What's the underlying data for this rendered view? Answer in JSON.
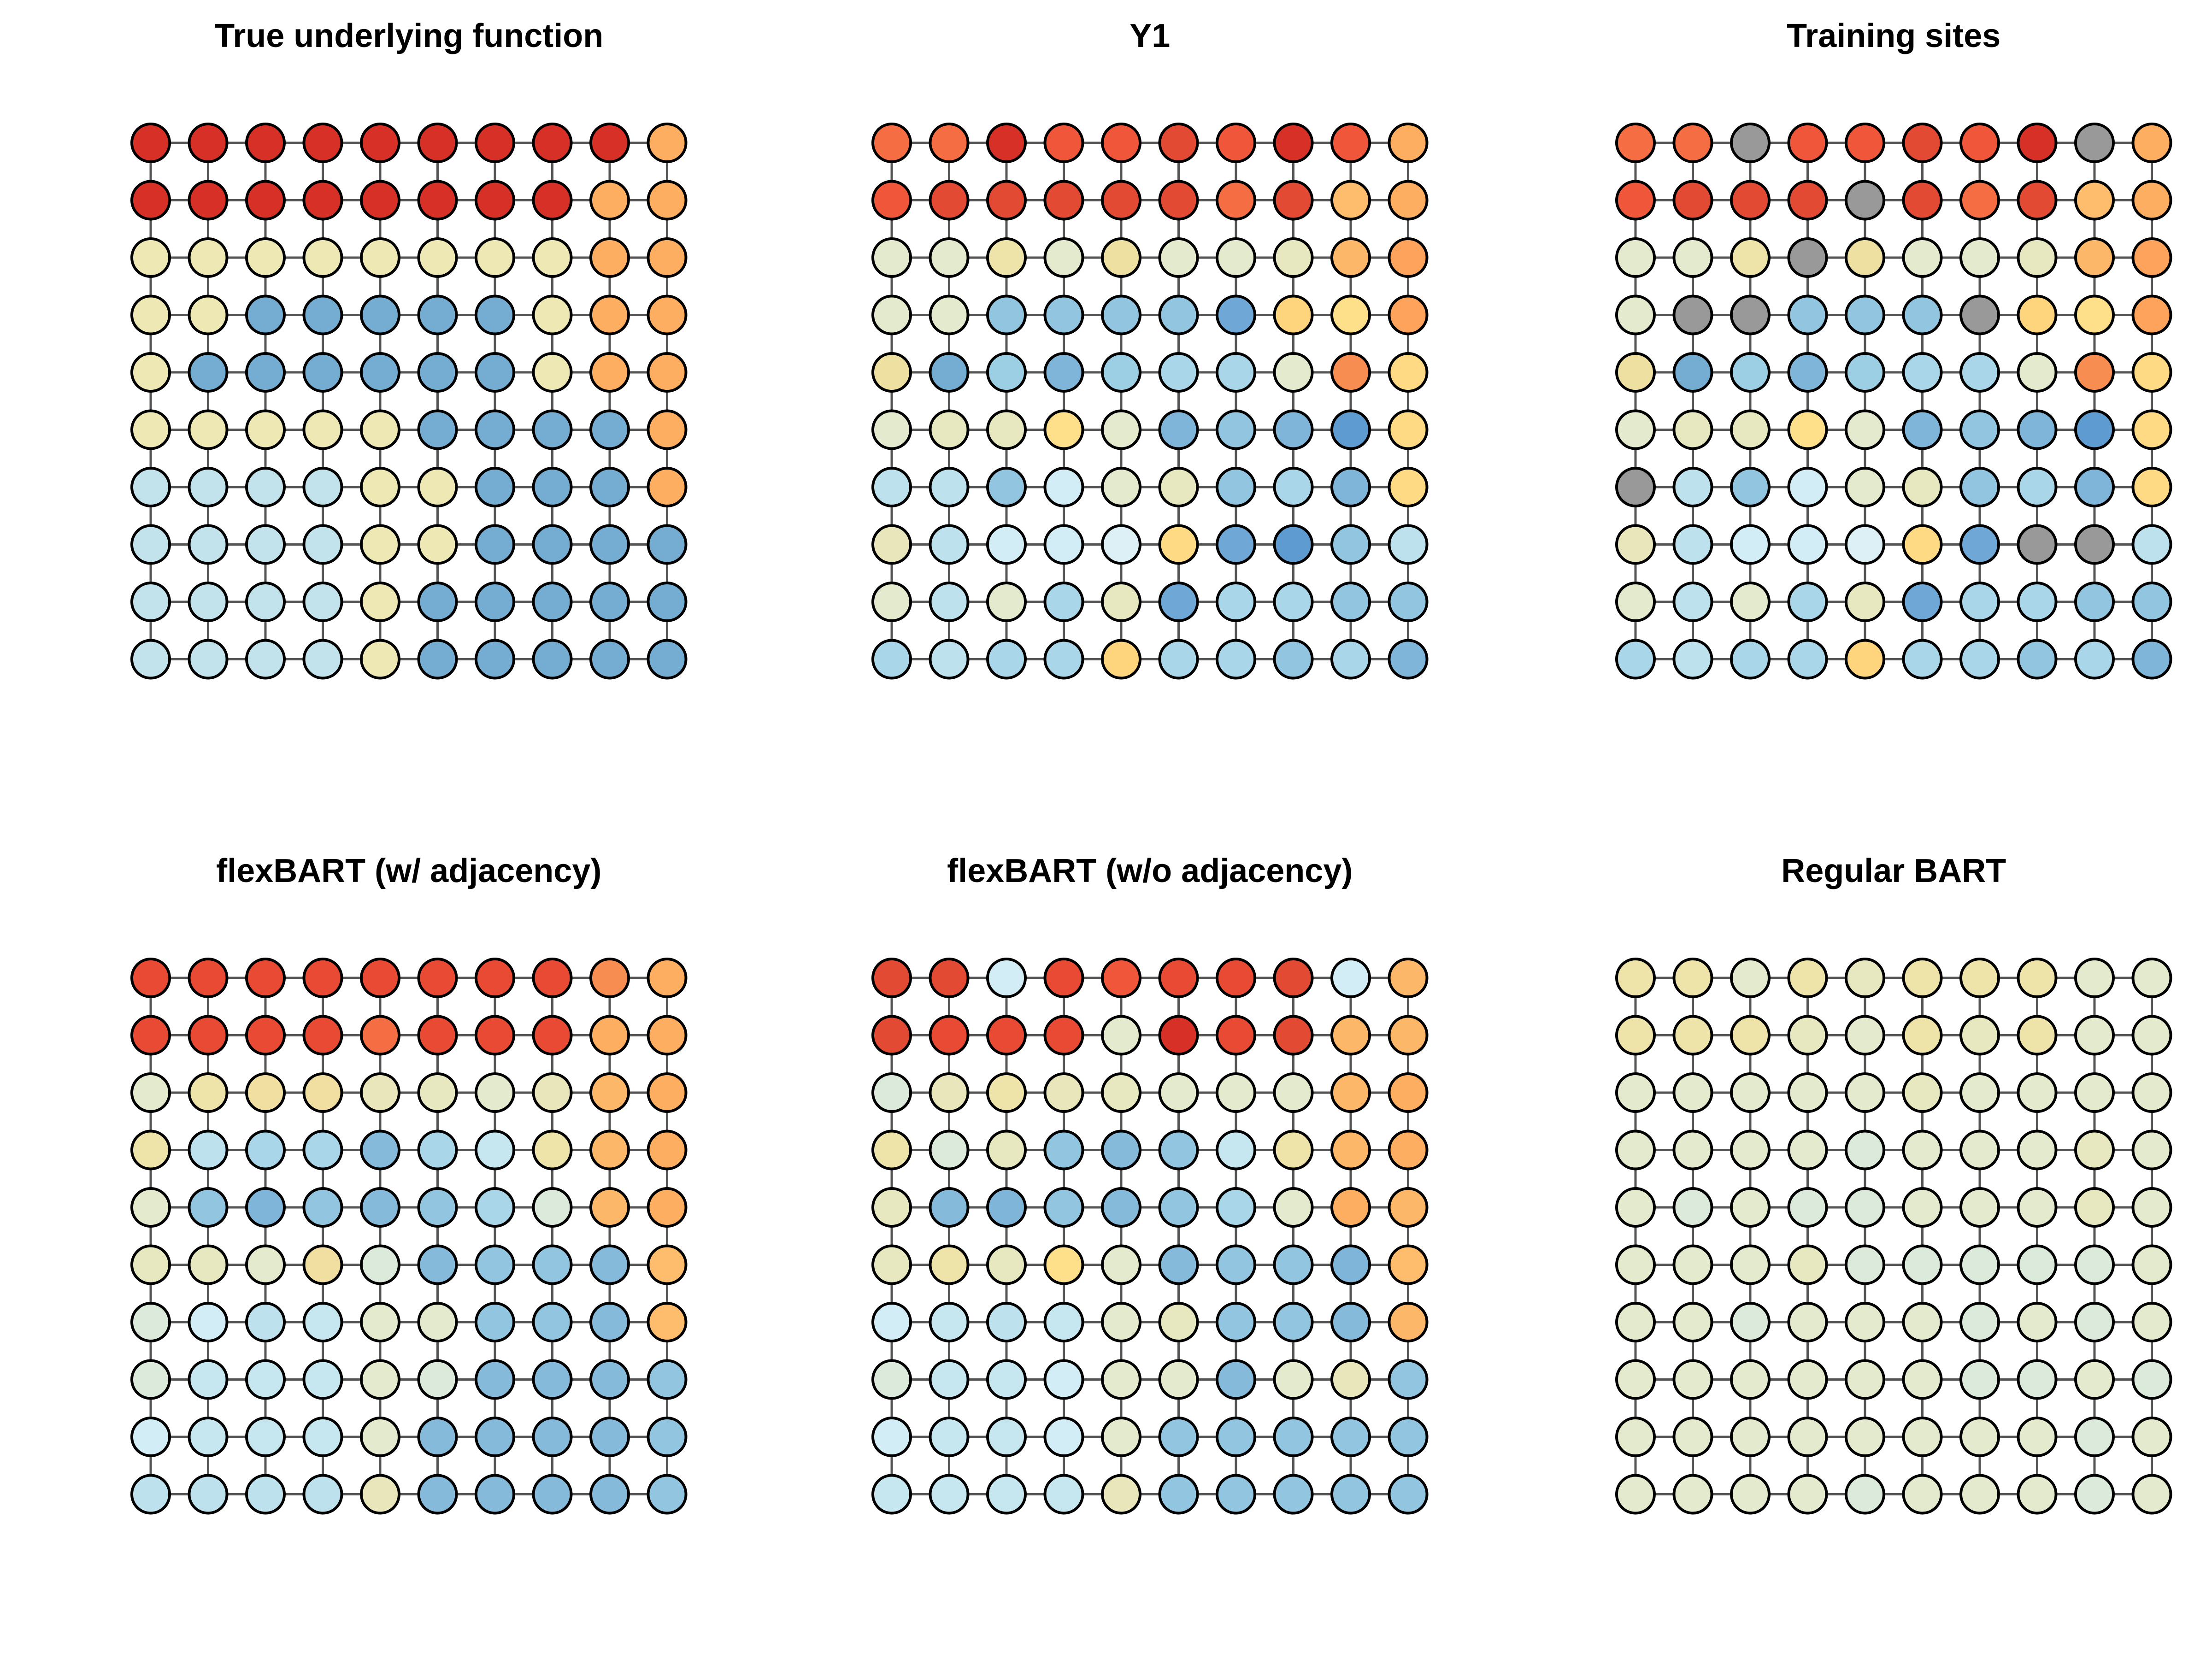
{
  "chart_data": [
    {
      "type": "heatmap",
      "title": "True underlying function",
      "grid": [
        [
          "#D73027",
          "#D73027",
          "#D73027",
          "#D73027",
          "#D73027",
          "#D73027",
          "#D73027",
          "#D73027",
          "#D73027",
          "#FDAE61"
        ],
        [
          "#D73027",
          "#D73027",
          "#D73027",
          "#D73027",
          "#D73027",
          "#D73027",
          "#D73027",
          "#D73027",
          "#FDAE61",
          "#FDAE61"
        ],
        [
          "#EEE8B5",
          "#EEE8B5",
          "#EEE8B5",
          "#EEE8B5",
          "#EEE8B5",
          "#EEE8B5",
          "#EEE8B5",
          "#EEE8B5",
          "#FDAE61",
          "#FDAE61"
        ],
        [
          "#EEE8B5",
          "#EEE8B5",
          "#74ADD1",
          "#74ADD1",
          "#74ADD1",
          "#74ADD1",
          "#74ADD1",
          "#EEE8B5",
          "#FDAE61",
          "#FDAE61"
        ],
        [
          "#EEE8B5",
          "#74ADD1",
          "#74ADD1",
          "#74ADD1",
          "#74ADD1",
          "#74ADD1",
          "#74ADD1",
          "#EEE8B5",
          "#FDAE61",
          "#FDAE61"
        ],
        [
          "#EEE8B5",
          "#EEE8B5",
          "#EEE8B5",
          "#EEE8B5",
          "#EEE8B5",
          "#74ADD1",
          "#74ADD1",
          "#74ADD1",
          "#74ADD1",
          "#FDAE61"
        ],
        [
          "#C3E3EC",
          "#C3E3EC",
          "#C3E3EC",
          "#C3E3EC",
          "#EEE8B5",
          "#EEE8B5",
          "#74ADD1",
          "#74ADD1",
          "#74ADD1",
          "#FDAE61"
        ],
        [
          "#C3E3EC",
          "#C3E3EC",
          "#C3E3EC",
          "#C3E3EC",
          "#EEE8B5",
          "#EEE8B5",
          "#74ADD1",
          "#74ADD1",
          "#74ADD1",
          "#74ADD1"
        ],
        [
          "#C3E3EC",
          "#C3E3EC",
          "#C3E3EC",
          "#C3E3EC",
          "#EEE8B5",
          "#74ADD1",
          "#74ADD1",
          "#74ADD1",
          "#74ADD1",
          "#74ADD1"
        ],
        [
          "#C3E3EC",
          "#C3E3EC",
          "#C3E3EC",
          "#C3E3EC",
          "#EEE8B5",
          "#74ADD1",
          "#74ADD1",
          "#74ADD1",
          "#74ADD1",
          "#74ADD1"
        ]
      ]
    },
    {
      "type": "heatmap",
      "title": "Y1",
      "grid": [
        [
          "#F46D43",
          "#F46D43",
          "#D73027",
          "#F0573A",
          "#F0573A",
          "#E34A33",
          "#F0573A",
          "#D73027",
          "#F0573A",
          "#FDAE61"
        ],
        [
          "#F0573A",
          "#E34A33",
          "#E34A33",
          "#E34A33",
          "#E34A33",
          "#E34A33",
          "#F46D43",
          "#E34A33",
          "#FDBD6D",
          "#FDAE61"
        ],
        [
          "#E3EACD",
          "#E3EACD",
          "#EEE4A9",
          "#E3EACD",
          "#EEE0A0",
          "#E3EACD",
          "#E3EACD",
          "#E8E8C0",
          "#FDB768",
          "#FDA35C"
        ],
        [
          "#E3EACD",
          "#E3EACD",
          "#91C5E0",
          "#91C5E0",
          "#91C5E0",
          "#91C5E0",
          "#6FA8D6",
          "#FED47D",
          "#FEE08B",
          "#FDA35C"
        ],
        [
          "#EEE0A0",
          "#74ADD1",
          "#9DCFE4",
          "#7FB5D9",
          "#9DCFE4",
          "#A9D6E8",
          "#A9D6E8",
          "#E3EACD",
          "#F88D52",
          "#FEDA85"
        ],
        [
          "#E3EACD",
          "#E8E8C0",
          "#E8E8C0",
          "#FEE08B",
          "#E3EACD",
          "#7FB5D9",
          "#91C5E0",
          "#7FB5D9",
          "#5E9BD0",
          "#FEDA85"
        ],
        [
          "#BDE2EE",
          "#BDE2EE",
          "#91C5E0",
          "#D2EDF5",
          "#E3EACD",
          "#E8E8C0",
          "#91C5E0",
          "#A9D6E8",
          "#7FB5D9",
          "#FEDA85"
        ],
        [
          "#EAE6BB",
          "#BDE2EE",
          "#D2EDF5",
          "#D2EDF5",
          "#DCF0F5",
          "#FEDA85",
          "#6FA8D6",
          "#5E9BD0",
          "#91C5E0",
          "#BDE2EE"
        ],
        [
          "#E3EACD",
          "#BDE2EE",
          "#E3EACD",
          "#A9D6E8",
          "#E8E8C0",
          "#6FA8D6",
          "#A9D6E8",
          "#A9D6E8",
          "#91C5E0",
          "#91C5E0"
        ],
        [
          "#A9D6E8",
          "#BDE2EE",
          "#A9D6E8",
          "#A9D6E8",
          "#FED47D",
          "#A9D6E8",
          "#A9D6E8",
          "#91C5E0",
          "#A9D6E8",
          "#7FB5D9"
        ]
      ]
    },
    {
      "type": "heatmap",
      "title": "Training sites",
      "grid": [
        [
          "#F46D43",
          "#F46D43",
          "#999999",
          "#F0573A",
          "#F0573A",
          "#E34A33",
          "#F0573A",
          "#D73027",
          "#999999",
          "#FDAE61"
        ],
        [
          "#F0573A",
          "#E34A33",
          "#E34A33",
          "#E34A33",
          "#999999",
          "#E34A33",
          "#F46D43",
          "#E34A33",
          "#FDBD6D",
          "#FDAE61"
        ],
        [
          "#E3EACD",
          "#E3EACD",
          "#EEE4A9",
          "#999999",
          "#EEE0A0",
          "#E3EACD",
          "#E3EACD",
          "#E8E8C0",
          "#FDB768",
          "#FDA35C"
        ],
        [
          "#E3EACD",
          "#999999",
          "#999999",
          "#91C5E0",
          "#91C5E0",
          "#91C5E0",
          "#999999",
          "#FED47D",
          "#FEE08B",
          "#FDA35C"
        ],
        [
          "#EEE0A0",
          "#74ADD1",
          "#9DCFE4",
          "#7FB5D9",
          "#9DCFE4",
          "#A9D6E8",
          "#A9D6E8",
          "#E3EACD",
          "#F88D52",
          "#FEDA85"
        ],
        [
          "#E3EACD",
          "#E8E8C0",
          "#E8E8C0",
          "#FEE08B",
          "#E3EACD",
          "#7FB5D9",
          "#91C5E0",
          "#7FB5D9",
          "#5E9BD0",
          "#FEDA85"
        ],
        [
          "#999999",
          "#BDE2EE",
          "#91C5E0",
          "#D2EDF5",
          "#E3EACD",
          "#E8E8C0",
          "#91C5E0",
          "#A9D6E8",
          "#7FB5D9",
          "#FEDA85"
        ],
        [
          "#EAE6BB",
          "#BDE2EE",
          "#D2EDF5",
          "#D2EDF5",
          "#DCF0F5",
          "#FEDA85",
          "#6FA8D6",
          "#999999",
          "#999999",
          "#BDE2EE"
        ],
        [
          "#E3EACD",
          "#BDE2EE",
          "#E3EACD",
          "#A9D6E8",
          "#E8E8C0",
          "#6FA8D6",
          "#A9D6E8",
          "#A9D6E8",
          "#91C5E0",
          "#91C5E0"
        ],
        [
          "#A9D6E8",
          "#BDE2EE",
          "#A9D6E8",
          "#A9D6E8",
          "#FED47D",
          "#A9D6E8",
          "#A9D6E8",
          "#91C5E0",
          "#A9D6E8",
          "#7FB5D9"
        ]
      ]
    },
    {
      "type": "heatmap",
      "title": "flexBART (w/ adjacency)",
      "grid": [
        [
          "#E84A33",
          "#E84A33",
          "#E84A33",
          "#E84A33",
          "#E84A33",
          "#E84A33",
          "#E84A33",
          "#E84A33",
          "#F88D52",
          "#FDAE61"
        ],
        [
          "#E84A33",
          "#E84A33",
          "#E84A33",
          "#E84A33",
          "#F46D43",
          "#E84A33",
          "#E84A33",
          "#E84A33",
          "#FDAE61",
          "#FDAE61"
        ],
        [
          "#E3EACD",
          "#EEE4A9",
          "#F0DFA0",
          "#F0DFA0",
          "#EAE6BB",
          "#E8E8C0",
          "#E3EACD",
          "#EAE6BB",
          "#FDB768",
          "#FDAE61"
        ],
        [
          "#EEE4A9",
          "#BDE2EE",
          "#A9D6E8",
          "#A9D6E8",
          "#85BADB",
          "#A9D6E8",
          "#C6E6F0",
          "#EEE4A9",
          "#FDB768",
          "#FDAE61"
        ],
        [
          "#E3EACD",
          "#91C5E0",
          "#7FB5D9",
          "#91C5E0",
          "#85BADB",
          "#91C5E0",
          "#A9D6E8",
          "#DCEADC",
          "#FDB768",
          "#FDAE61"
        ],
        [
          "#E8E8C0",
          "#E8E8C0",
          "#E3EACD",
          "#F0DFA0",
          "#DCEADC",
          "#85BADB",
          "#91C5E0",
          "#91C5E0",
          "#85BADB",
          "#FDBD6D"
        ],
        [
          "#DCEADC",
          "#D2EDF5",
          "#BDE2EE",
          "#C6E6F0",
          "#E3EACD",
          "#E3EACD",
          "#91C5E0",
          "#91C5E0",
          "#85BADB",
          "#FDBD6D"
        ],
        [
          "#DCEADC",
          "#C6E6F0",
          "#C6E6F0",
          "#C6E6F0",
          "#E3EACD",
          "#DCEADC",
          "#85BADB",
          "#85BADB",
          "#85BADB",
          "#91C5E0"
        ],
        [
          "#D2EDF5",
          "#C6E6F0",
          "#C6E6F0",
          "#C6E6F0",
          "#E3EACD",
          "#85BADB",
          "#85BADB",
          "#85BADB",
          "#85BADB",
          "#91C5E0"
        ],
        [
          "#BDE2EE",
          "#BDE2EE",
          "#BDE2EE",
          "#BDE2EE",
          "#EAE6BB",
          "#85BADB",
          "#85BADB",
          "#85BADB",
          "#85BADB",
          "#91C5E0"
        ]
      ]
    },
    {
      "type": "heatmap",
      "title": "flexBART (w/o adjacency)",
      "grid": [
        [
          "#E34A33",
          "#E34A33",
          "#D2EDF5",
          "#E84A33",
          "#F0573A",
          "#E84A33",
          "#E84A33",
          "#E34A33",
          "#D2EDF5",
          "#FDB768"
        ],
        [
          "#E34A33",
          "#E84A33",
          "#E84A33",
          "#E84A33",
          "#E3EACD",
          "#D73027",
          "#E84A33",
          "#E34A33",
          "#FDB768",
          "#FDB768"
        ],
        [
          "#DCEADC",
          "#EAE6BB",
          "#EEE4A9",
          "#EAE6BB",
          "#E8E8C0",
          "#E3EACD",
          "#E3EACD",
          "#E3EACD",
          "#FDB768",
          "#FDAE61"
        ],
        [
          "#EEE4A9",
          "#DCEADC",
          "#E8E8C0",
          "#91C5E0",
          "#85BADB",
          "#91C5E0",
          "#C6E6F0",
          "#EEE4A9",
          "#FDB768",
          "#FDAE61"
        ],
        [
          "#E8E8C0",
          "#85BADB",
          "#7FB5D9",
          "#91C5E0",
          "#85BADB",
          "#91C5E0",
          "#A9D6E8",
          "#E3EACD",
          "#FDAE61",
          "#FDB768"
        ],
        [
          "#E8E8C0",
          "#EEE4A9",
          "#E8E8C0",
          "#FEE08B",
          "#E3EACD",
          "#85BADB",
          "#91C5E0",
          "#91C5E0",
          "#7FB5D9",
          "#FDBD6D"
        ],
        [
          "#D2EDF5",
          "#C6E6F0",
          "#BDE2EE",
          "#C6E6F0",
          "#E3EACD",
          "#E8E8C0",
          "#91C5E0",
          "#91C5E0",
          "#85BADB",
          "#FDB768"
        ],
        [
          "#DCEADC",
          "#C6E6F0",
          "#C6E6F0",
          "#D2EDF5",
          "#E3EACD",
          "#E3EACD",
          "#85BADB",
          "#E3EACD",
          "#EAE6BB",
          "#91C5E0"
        ],
        [
          "#D2EDF5",
          "#C6E6F0",
          "#C6E6F0",
          "#D2EDF5",
          "#E3EACD",
          "#91C5E0",
          "#91C5E0",
          "#91C5E0",
          "#91C5E0",
          "#91C5E0"
        ],
        [
          "#C6E6F0",
          "#C6E6F0",
          "#C6E6F0",
          "#C6E6F0",
          "#EAE6BB",
          "#91C5E0",
          "#91C5E0",
          "#91C5E0",
          "#91C5E0",
          "#91C5E0"
        ]
      ]
    },
    {
      "type": "heatmap",
      "title": "Regular BART",
      "grid": [
        [
          "#EEE4A9",
          "#EEE4A9",
          "#E3EACD",
          "#EEE4A9",
          "#E8E8C0",
          "#EEE4A9",
          "#EEE4A9",
          "#EEE4A9",
          "#E3EACD",
          "#E3EACD"
        ],
        [
          "#EEE4A9",
          "#EEE4A9",
          "#EEE4A9",
          "#E8E8C0",
          "#E3EACD",
          "#EEE4A9",
          "#E8E8C0",
          "#EEE4A9",
          "#E3EACD",
          "#E3EACD"
        ],
        [
          "#E3EACD",
          "#E3EACD",
          "#E3EACD",
          "#E3EACD",
          "#E3EACD",
          "#E8E8C0",
          "#E3EACD",
          "#E3EACD",
          "#E3EACD",
          "#E3EACD"
        ],
        [
          "#E3EACD",
          "#E3EACD",
          "#E3EACD",
          "#E3EACD",
          "#DCEADC",
          "#E3EACD",
          "#E3EACD",
          "#E3EACD",
          "#E8E8C0",
          "#E3EACD"
        ],
        [
          "#E3EACD",
          "#DCEADC",
          "#E3EACD",
          "#DCEADC",
          "#DCEADC",
          "#E3EACD",
          "#E3EACD",
          "#E3EACD",
          "#E8E8C0",
          "#E3EACD"
        ],
        [
          "#E3EACD",
          "#E3EACD",
          "#E3EACD",
          "#E8E8C0",
          "#DCEADC",
          "#DCEADC",
          "#DCEADC",
          "#DCEADC",
          "#DCEADC",
          "#E3EACD"
        ],
        [
          "#E3EACD",
          "#E3EACD",
          "#DCEADC",
          "#E3EACD",
          "#E3EACD",
          "#E3EACD",
          "#DCEADC",
          "#E3EACD",
          "#DCEADC",
          "#E3EACD"
        ],
        [
          "#E3EACD",
          "#E3EACD",
          "#E3EACD",
          "#E3EACD",
          "#E3EACD",
          "#E3EACD",
          "#DCEADC",
          "#DCEADC",
          "#E3EACD",
          "#DCEADC"
        ],
        [
          "#E3EACD",
          "#E3EACD",
          "#E3EACD",
          "#E3EACD",
          "#E3EACD",
          "#E3EACD",
          "#E3EACD",
          "#E3EACD",
          "#DCEADC",
          "#E3EACD"
        ],
        [
          "#E3EACD",
          "#E3EACD",
          "#E3EACD",
          "#E3EACD",
          "#DCEADC",
          "#E3EACD",
          "#E3EACD",
          "#E3EACD",
          "#DCEADC",
          "#E3EACD"
        ]
      ]
    }
  ]
}
